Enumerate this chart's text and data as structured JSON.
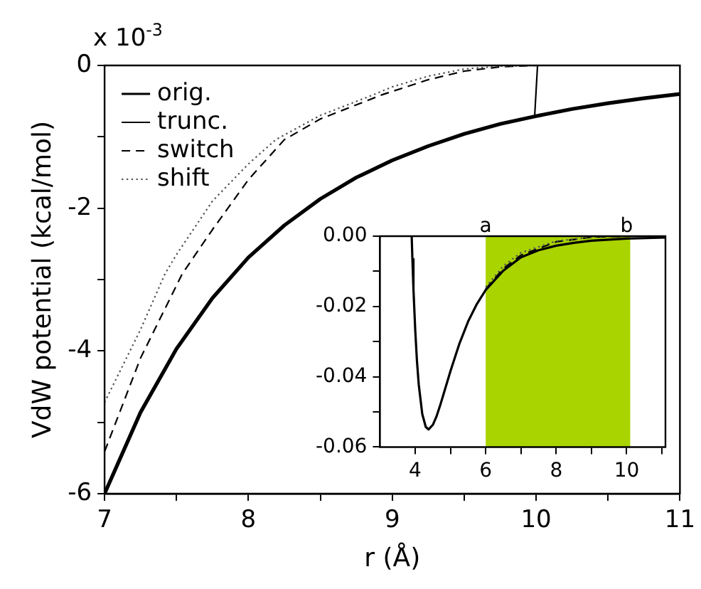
{
  "chart_data": [
    {
      "type": "line",
      "xlabel": "r (Å)",
      "ylabel": "VdW potential (kcal/mol)",
      "annotations": [
        "x 10$^{-3}$"
      ],
      "xlim": [
        7,
        11
      ],
      "ylim": [
        -6,
        0
      ],
      "xticks": [
        7,
        {
          "value": 7.5,
          "label": null
        },
        8,
        {
          "value": 8.5,
          "label": null
        },
        9,
        {
          "value": 9.5,
          "label": null
        },
        10,
        {
          "value": 10.5,
          "label": null
        },
        11
      ],
      "yticks": [
        -6,
        {
          "value": -5,
          "label": null
        },
        -4,
        {
          "value": -3,
          "label": null
        },
        -2,
        {
          "value": -1,
          "label": null
        },
        0
      ],
      "legend": "top left",
      "series": [
        {
          "name": "orig.",
          "color": "#000000",
          "line_style": "solid",
          "x": [
            7,
            7.25,
            7.5,
            7.75,
            8,
            8.25,
            8.5,
            8.75,
            9,
            9.25,
            9.5,
            9.75,
            10,
            10.25,
            10.5,
            10.75,
            11
          ],
          "values": [
            -6,
            -4.86,
            -3.97,
            -3.26,
            -2.69,
            -2.24,
            -1.87,
            -1.57,
            -1.33,
            -1.13,
            -0.96,
            -0.82,
            -0.71,
            -0.61,
            -0.53,
            -0.46,
            -0.4
          ]
        },
        {
          "name": "trunc.",
          "color": "#000000",
          "line_style": "solid",
          "x": [
            9.99,
            10.01,
            11
          ],
          "values": [
            -0.71,
            0,
            0
          ]
        },
        {
          "name": "switch",
          "color": "#000000",
          "line_style": "dashed",
          "x": [
            7,
            7.25,
            7.54,
            7.75,
            8,
            8.25,
            8.5,
            8.93,
            9.25,
            9.5,
            9.75,
            10,
            11
          ],
          "values": [
            -5.41,
            -4.1,
            -2.92,
            -2.3,
            -1.6,
            -1.04,
            -0.75,
            -0.41,
            -0.2,
            -0.08,
            -0.02,
            0,
            0
          ]
        },
        {
          "name": "shift",
          "color": "#555555",
          "line_style": "dotted",
          "x": [
            7,
            7.25,
            7.42,
            7.5,
            7.75,
            8,
            8.19,
            8.5,
            8.87,
            9,
            9.25,
            9.5,
            9.75,
            10,
            11
          ],
          "values": [
            -4.72,
            -3.7,
            -2.92,
            -2.65,
            -1.9,
            -1.38,
            -1.04,
            -0.7,
            -0.41,
            -0.3,
            -0.15,
            -0.05,
            -0.01,
            0,
            0
          ]
        }
      ]
    },
    {
      "type": "line",
      "xlim": [
        3,
        11.1
      ],
      "ylim": [
        -0.06,
        0
      ],
      "xticks": [
        4,
        {
          "value": 5,
          "label": null
        },
        6,
        {
          "value": 7,
          "label": null
        },
        8,
        {
          "value": 9,
          "label": null
        },
        10,
        {
          "value": 11,
          "label": null
        }
      ],
      "yticks": [
        {
          "value": -0.06,
          "label": "-0.06"
        },
        {
          "value": -0.05,
          "label": null
        },
        {
          "value": -0.04,
          "label": "-0.04"
        },
        {
          "value": -0.03,
          "label": null
        },
        {
          "value": -0.02,
          "label": "-0.02"
        },
        {
          "value": -0.01,
          "label": null
        },
        {
          "value": 0,
          "label": "0.00"
        }
      ],
      "bands": [
        {
          "axis": "x",
          "from": 6,
          "to": 10.1,
          "color": "#aad400"
        }
      ],
      "annotations": [
        {
          "text": "a",
          "x": 6,
          "y": 0
        },
        {
          "text": "b",
          "x": 10,
          "y": 0
        }
      ],
      "series": [
        {
          "color": "#000000",
          "line_style": "solid",
          "x": [
            3.9,
            3.92,
            3.95,
            4,
            4.05,
            4.1,
            4.2,
            4.3,
            4.38,
            4.5,
            4.6,
            4.7,
            4.8,
            5,
            5.25,
            5.5,
            5.75,
            6,
            6.5,
            7,
            7.5,
            8,
            8.5,
            9,
            10,
            11.1
          ],
          "values": [
            0,
            -0.0065,
            -0.015,
            -0.0266,
            -0.0356,
            -0.0422,
            -0.0506,
            -0.0543,
            -0.055,
            -0.0537,
            -0.0514,
            -0.0484,
            -0.0451,
            -0.0384,
            -0.0307,
            -0.0243,
            -0.0193,
            -0.0153,
            -0.0098,
            -0.006,
            -0.004,
            -0.0027,
            -0.0019,
            -0.0013,
            -0.0007,
            -0.0004
          ]
        },
        {
          "color": "#000000",
          "line_style": "dashed",
          "x": [
            6,
            6.5,
            7,
            8,
            9,
            10,
            11.1
          ],
          "values": [
            -0.015,
            -0.0092,
            -0.0054,
            -0.0016,
            -0.0003,
            0,
            0
          ]
        },
        {
          "color": "#555555",
          "line_style": "dotted",
          "x": [
            6,
            6.5,
            7,
            8,
            9,
            10,
            11.1
          ],
          "values": [
            -0.0145,
            -0.0085,
            -0.0047,
            -0.0014,
            -0.0003,
            0,
            0
          ]
        }
      ]
    }
  ]
}
